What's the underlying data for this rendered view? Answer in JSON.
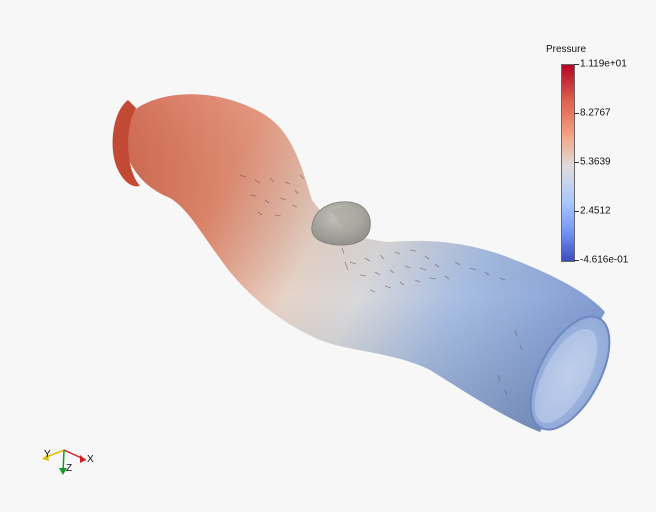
{
  "render_view": {
    "background": "#f7f7f7",
    "colormap": "Cool to Warm",
    "object_colors": {
      "hot": "#c8553d",
      "warm": "#e8a68a",
      "mid": "#ddd6d1",
      "cool": "#a9bde0",
      "cold": "#7c98d0",
      "obstacle": "#b2b2aa"
    }
  },
  "colorbar": {
    "title": "Pressure",
    "labels": [
      "1.119e+01",
      "8.2767",
      "5.3639",
      "2.4512",
      "-4.616e-01"
    ],
    "values": [
      11.19,
      8.2767,
      5.3639,
      2.4512,
      -0.4616
    ],
    "range": [
      -0.4616,
      11.19
    ]
  },
  "axes": {
    "x_label": "X",
    "y_label": "Y",
    "z_label": "Z",
    "x_color": "#d42020",
    "y_color": "#e0c000",
    "z_color": "#10a020"
  }
}
